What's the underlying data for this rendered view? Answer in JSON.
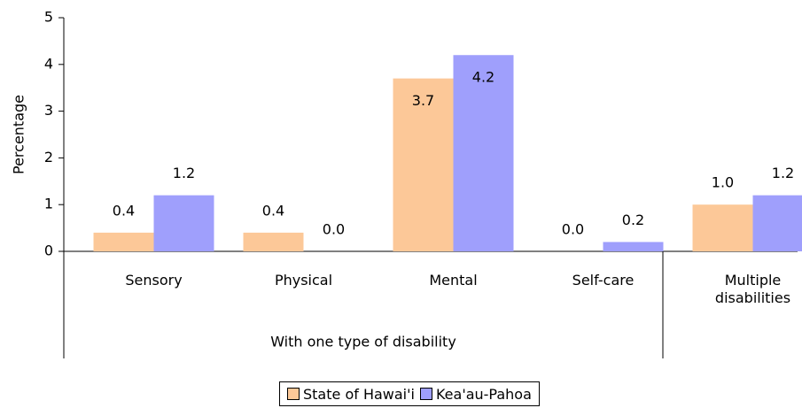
{
  "chart_data": {
    "type": "bar",
    "y_label": "Percentage",
    "group_label": "With one type of disability",
    "categories": [
      "Sensory",
      "Physical",
      "Mental",
      "Self-care",
      "Multiple disabilities"
    ],
    "series": [
      {
        "name": "State of Hawai'i",
        "color": "#fcc898",
        "values": [
          0.4,
          0.4,
          3.7,
          0.0,
          1.0
        ],
        "value_labels": [
          "0.4",
          "0.4",
          "3.7",
          "0.0",
          "1.0"
        ]
      },
      {
        "name": "Kea'au-Pahoa",
        "color": "#9f9ffc",
        "values": [
          1.2,
          0.0,
          4.2,
          0.2,
          1.2
        ],
        "value_labels": [
          "1.2",
          "0.0",
          "4.2",
          "0.2",
          "1.2"
        ]
      }
    ],
    "ylim": [
      0,
      5
    ],
    "yticks": [
      0,
      1,
      2,
      3,
      4,
      5
    ],
    "grid": false,
    "legend": "bottom"
  }
}
